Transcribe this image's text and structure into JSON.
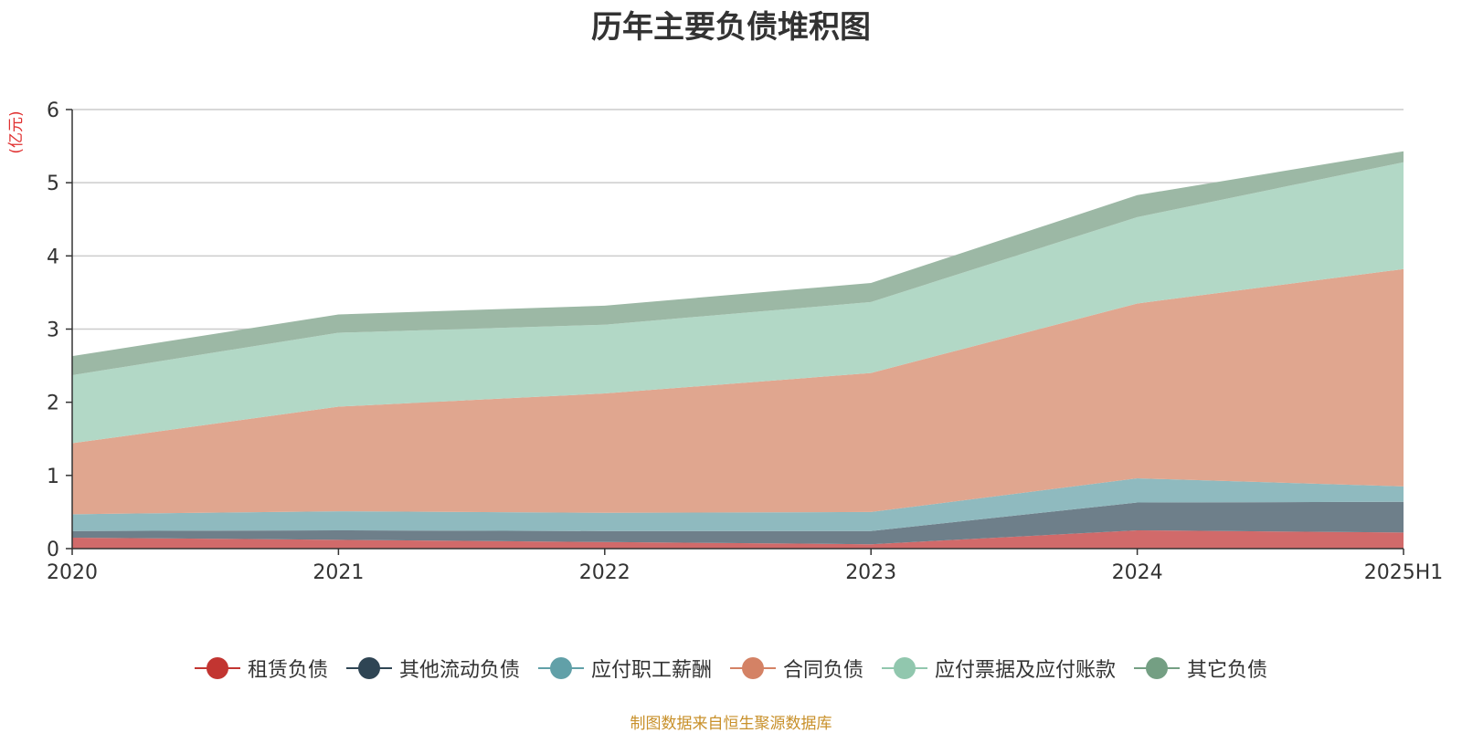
{
  "chart_data": {
    "type": "area",
    "stacked": true,
    "title": "历年主要负债堆积图",
    "ylabel": "(亿元)",
    "categories": [
      "2020",
      "2021",
      "2022",
      "2023",
      "2024",
      "2025H1"
    ],
    "ylim": [
      0,
      6
    ],
    "yticks": [
      "0",
      "1",
      "2",
      "3",
      "4",
      "5",
      "6"
    ],
    "grid": true,
    "legend_position": "bottom",
    "series": [
      {
        "name": "租赁负债",
        "values": [
          0.15,
          0.12,
          0.09,
          0.06,
          0.25,
          0.22
        ],
        "color": "#c23531",
        "fill": "#d16a6a"
      },
      {
        "name": "其他流动负债",
        "values": [
          0.09,
          0.13,
          0.15,
          0.18,
          0.38,
          0.42
        ],
        "color": "#2f4554",
        "fill": "#6e7f8a"
      },
      {
        "name": "应付职工薪酬",
        "values": [
          0.23,
          0.26,
          0.25,
          0.26,
          0.33,
          0.21
        ],
        "color": "#61a0a8",
        "fill": "#8fbabf"
      },
      {
        "name": "合同负债",
        "values": [
          0.97,
          1.43,
          1.63,
          1.9,
          2.39,
          2.97
        ],
        "color": "#d48265",
        "fill": "#e0a68f"
      },
      {
        "name": "应付票据及应付账款",
        "values": [
          0.93,
          1.01,
          0.94,
          0.97,
          1.18,
          1.46
        ],
        "color": "#91c7ae",
        "fill": "#b2d8c6"
      },
      {
        "name": "其它负债",
        "values": [
          0.26,
          0.25,
          0.26,
          0.26,
          0.3,
          0.15
        ],
        "color": "#749f83",
        "fill": "#9cb8a5"
      }
    ]
  },
  "source_note": "制图数据来自恒生聚源数据库"
}
